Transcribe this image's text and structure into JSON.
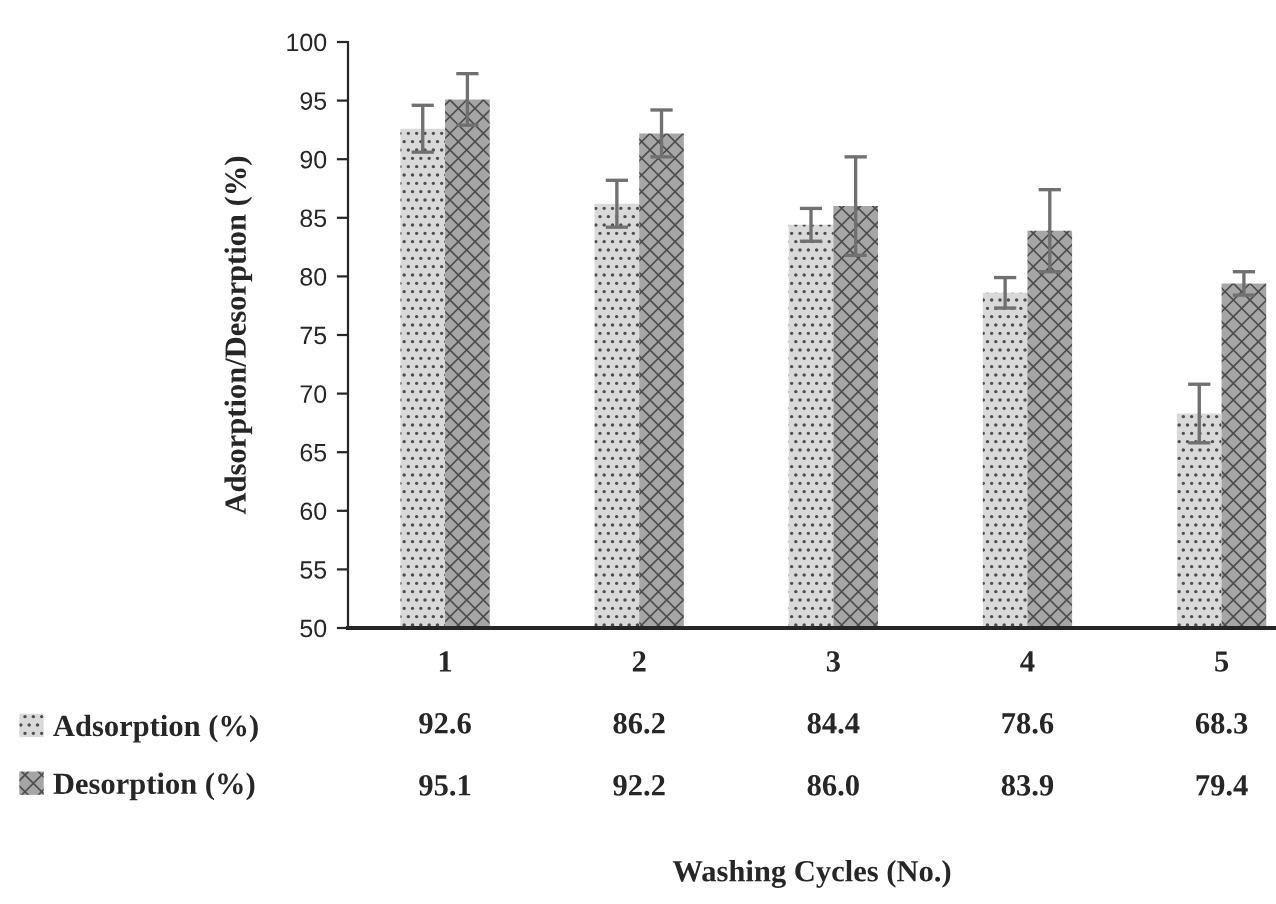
{
  "chart_data": {
    "type": "bar",
    "annotations": [
      "Washing Cycles (No.)"
    ],
    "ylabel": "Adsorption/Desorption (%)",
    "categories": [
      "1",
      "2",
      "3",
      "4",
      "5"
    ],
    "series": [
      {
        "name": "Adsorption (%)",
        "color": "#d9d9d9",
        "values": [
          92.6,
          86.2,
          84.4,
          78.6,
          68.3
        ],
        "value_labels": [
          "92.6",
          "86.2",
          "84.4",
          "78.6",
          "68.3"
        ],
        "errors": [
          2.0,
          2.0,
          1.4,
          1.3,
          2.5
        ]
      },
      {
        "name": "Desorption (%)",
        "color": "#a6a6a6",
        "values": [
          95.1,
          92.2,
          86.0,
          83.9,
          79.4
        ],
        "value_labels": [
          "95.1",
          "92.2",
          "86.0",
          "83.9",
          "79.4"
        ],
        "errors": [
          2.2,
          2.0,
          4.2,
          3.5,
          1.0
        ]
      }
    ],
    "ylim": [
      50,
      100
    ],
    "yticks": [
      50,
      55,
      60,
      65,
      70,
      75,
      80,
      85,
      90,
      95,
      100
    ],
    "grid": false,
    "legend": "bottom"
  }
}
